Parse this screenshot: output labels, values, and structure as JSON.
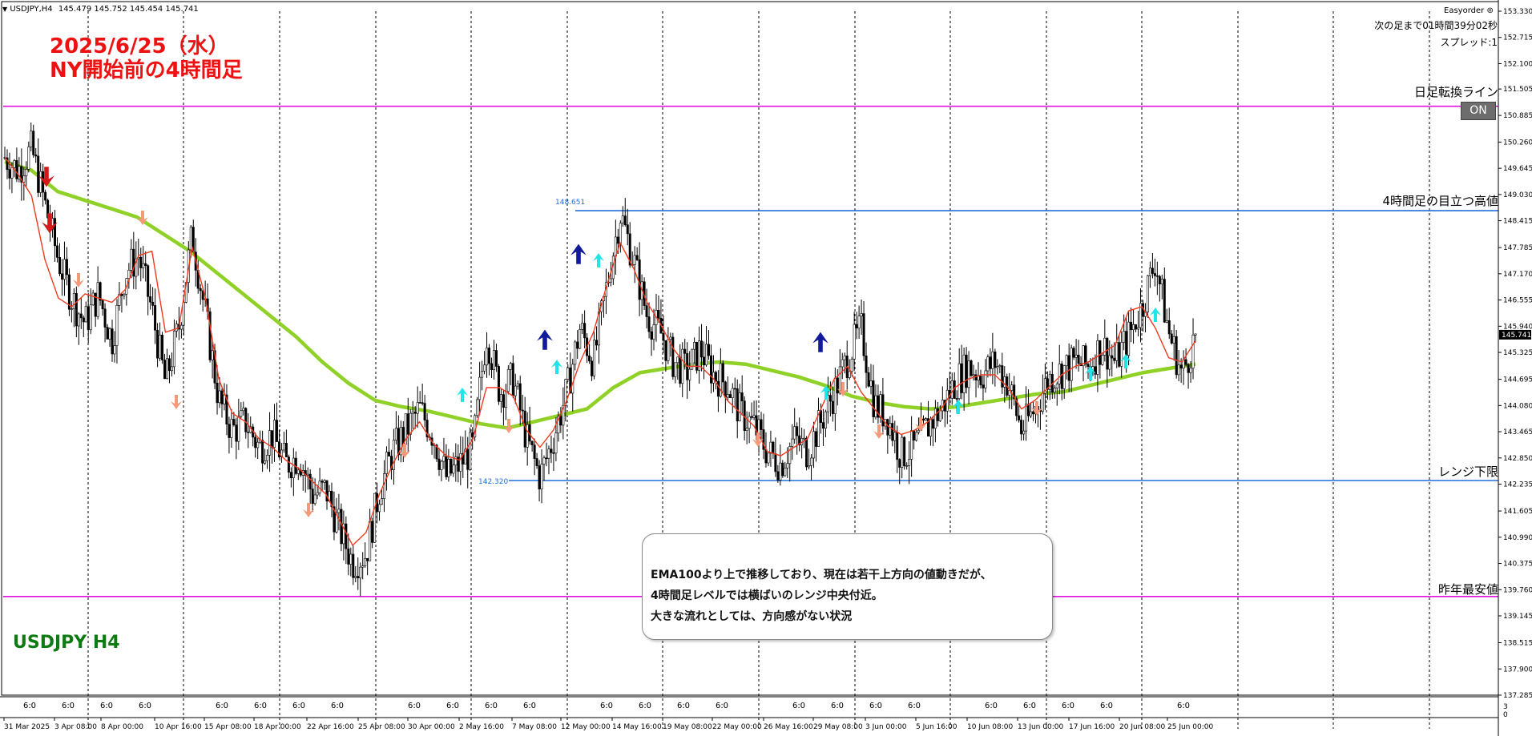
{
  "header": {
    "symbol": "USDJPY,H4",
    "ohlc": "145.479 145.752 145.454 145.741",
    "broker_tag": "Easyorder"
  },
  "info_panel": {
    "countdown": "次の足まで01時間39分02秒",
    "spread": "スプレッド:1"
  },
  "annotations": {
    "date_title": "2025/6/25（水）",
    "session_title": "NY開始前の4時間足",
    "symbol_title": "USDJPY H4",
    "callout_lines": [
      "EMA100より上で推移しており、現在は若干上方向の値動きだが、",
      "4時間足レベルでは横ばいのレンジ中央付近。",
      "大きな流れとしては、方向感がない状況"
    ]
  },
  "toggle": {
    "label": "ON"
  },
  "colors": {
    "magenta_lines": "#e011e0",
    "blue_lines": "#1e6fd9",
    "ema100": "#8fd126",
    "ema_fast": "#f03a20",
    "candle": "#000000",
    "arrow_down_red": "#d21a1a",
    "arrow_up_navy": "#101a9a",
    "arrow_salmon": "#f29a7a",
    "arrow_cyan": "#22e3e8"
  },
  "chart_data": {
    "type": "candlestick",
    "symbol": "USDJPY",
    "timeframe": "H4",
    "current_price": "145.741",
    "ylim": [
      137.285,
      153.33
    ],
    "y_ticks": [
      "153.330",
      "152.715",
      "152.100",
      "151.505",
      "150.885",
      "150.260",
      "149.645",
      "149.030",
      "148.415",
      "147.785",
      "147.170",
      "146.555",
      "145.940",
      "145.325",
      "144.695",
      "144.080",
      "143.465",
      "142.850",
      "142.235",
      "141.605",
      "140.990",
      "140.375",
      "139.760",
      "139.145",
      "138.515",
      "137.900",
      "137.285"
    ],
    "x_ticks": [
      "31 Mar 2025",
      "3 Apr 08:00",
      "8 Apr 00:00",
      "10 Apr 16:00",
      "15 Apr 08:00",
      "18 Apr 00:00",
      "22 Apr 16:00",
      "25 Apr 08:00",
      "30 Apr 00:00",
      "2 May 16:00",
      "7 May 08:00",
      "12 May 00:00",
      "14 May 16:00",
      "19 May 08:00",
      "22 May 00:00",
      "26 May 16:00",
      "29 May 08:00",
      "3 Jun 00:00",
      "5 Jun 16:00",
      "10 Jun 08:00",
      "13 Jun 00:00",
      "17 Jun 16:00",
      "20 Jun 08:00",
      "25 Jun 00:00"
    ],
    "sub_window": {
      "row_label": "6:0",
      "row_count": 30,
      "scale_top": "3",
      "scale_bottom": "0"
    },
    "horizontal_lines": [
      {
        "label": "日足転換ライン",
        "price": 151.1,
        "color": "#e011e0"
      },
      {
        "label": "4時間足の目立つ高値",
        "price": 148.651,
        "value_tag": "148.651",
        "color": "#1e6fd9"
      },
      {
        "label": "レンジ下限",
        "price": 142.32,
        "value_tag": "142.320",
        "color": "#1e6fd9"
      },
      {
        "label": "昨年最安値",
        "price": 139.6,
        "color": "#e011e0"
      }
    ],
    "close_path": [
      149.9,
      149.6,
      150.1,
      148.8,
      147.5,
      146.6,
      146.0,
      146.7,
      145.6,
      147.2,
      147.6,
      146.3,
      144.6,
      145.9,
      148.1,
      146.2,
      144.2,
      143.5,
      143.7,
      143.1,
      143.4,
      142.7,
      142.9,
      142.0,
      142.1,
      141.2,
      140.4,
      140.6,
      142.1,
      143.0,
      143.5,
      144.0,
      143.4,
      142.4,
      142.7,
      143.1,
      145.8,
      144.4,
      144.7,
      143.3,
      142.4,
      143.3,
      144.4,
      145.9,
      145.1,
      146.9,
      148.6,
      147.5,
      146.2,
      145.8,
      145.1,
      144.9,
      145.4,
      144.8,
      144.6,
      143.9,
      143.6,
      143.0,
      142.7,
      143.3,
      143.0,
      143.7,
      144.4,
      145.2,
      145.9,
      144.1,
      143.8,
      142.9,
      143.1,
      143.6,
      144.0,
      144.6,
      145.0,
      144.8,
      145.1,
      144.6,
      143.5,
      144.0,
      144.7,
      144.9,
      145.1,
      145.0,
      145.5,
      145.1,
      145.7,
      146.4,
      147.5,
      145.8,
      144.8,
      145.7
    ],
    "ema_fast_path": [
      149.9,
      149.5,
      149.0,
      147.5,
      146.6,
      146.4,
      146.7,
      146.6,
      146.5,
      146.8,
      147.6,
      147.7,
      145.8,
      145.9,
      147.8,
      146.6,
      144.7,
      143.9,
      143.7,
      143.3,
      143.1,
      142.8,
      142.6,
      142.3,
      142.0,
      141.4,
      140.8,
      141.1,
      142.0,
      142.7,
      143.3,
      143.7,
      143.2,
      142.9,
      142.8,
      143.3,
      144.5,
      144.5,
      144.3,
      143.5,
      143.1,
      143.5,
      144.2,
      145.1,
      145.8,
      146.9,
      147.9,
      147.3,
      146.5,
      146.0,
      145.4,
      145.0,
      145.0,
      144.7,
      144.2,
      143.9,
      143.6,
      143.0,
      142.9,
      143.1,
      143.3,
      144.0,
      144.7,
      145.0,
      144.4,
      144.0,
      143.6,
      143.4,
      143.5,
      143.7,
      144.0,
      144.5,
      144.7,
      144.8,
      144.8,
      144.5,
      144.0,
      144.2,
      144.5,
      144.8,
      145.0,
      145.1,
      145.3,
      145.5,
      146.3,
      146.4,
      145.9,
      145.2,
      145.1,
      145.6
    ],
    "ema100_path": [
      149.8,
      149.6,
      149.1,
      148.9,
      148.7,
      148.5,
      148.1,
      147.7,
      147.2,
      146.7,
      146.2,
      145.7,
      145.1,
      144.6,
      144.2,
      144.05,
      143.95,
      143.8,
      143.65,
      143.55,
      143.7,
      143.85,
      144.0,
      144.5,
      144.85,
      144.95,
      145.05,
      145.1,
      145.05,
      144.9,
      144.75,
      144.55,
      144.3,
      144.15,
      144.05,
      144.0,
      144.05,
      144.15,
      144.25,
      144.35,
      144.4,
      144.55,
      144.7,
      144.85,
      144.95,
      145.05
    ],
    "arrows": [
      {
        "dir": "down",
        "color": "red",
        "label": "sell"
      },
      {
        "dir": "down",
        "color": "red",
        "label": "sell"
      },
      {
        "dir": "up",
        "color": "navy",
        "label": "buy"
      },
      {
        "dir": "up",
        "color": "navy",
        "label": "buy"
      },
      {
        "dir": "up",
        "color": "navy",
        "label": "buy"
      }
    ]
  }
}
